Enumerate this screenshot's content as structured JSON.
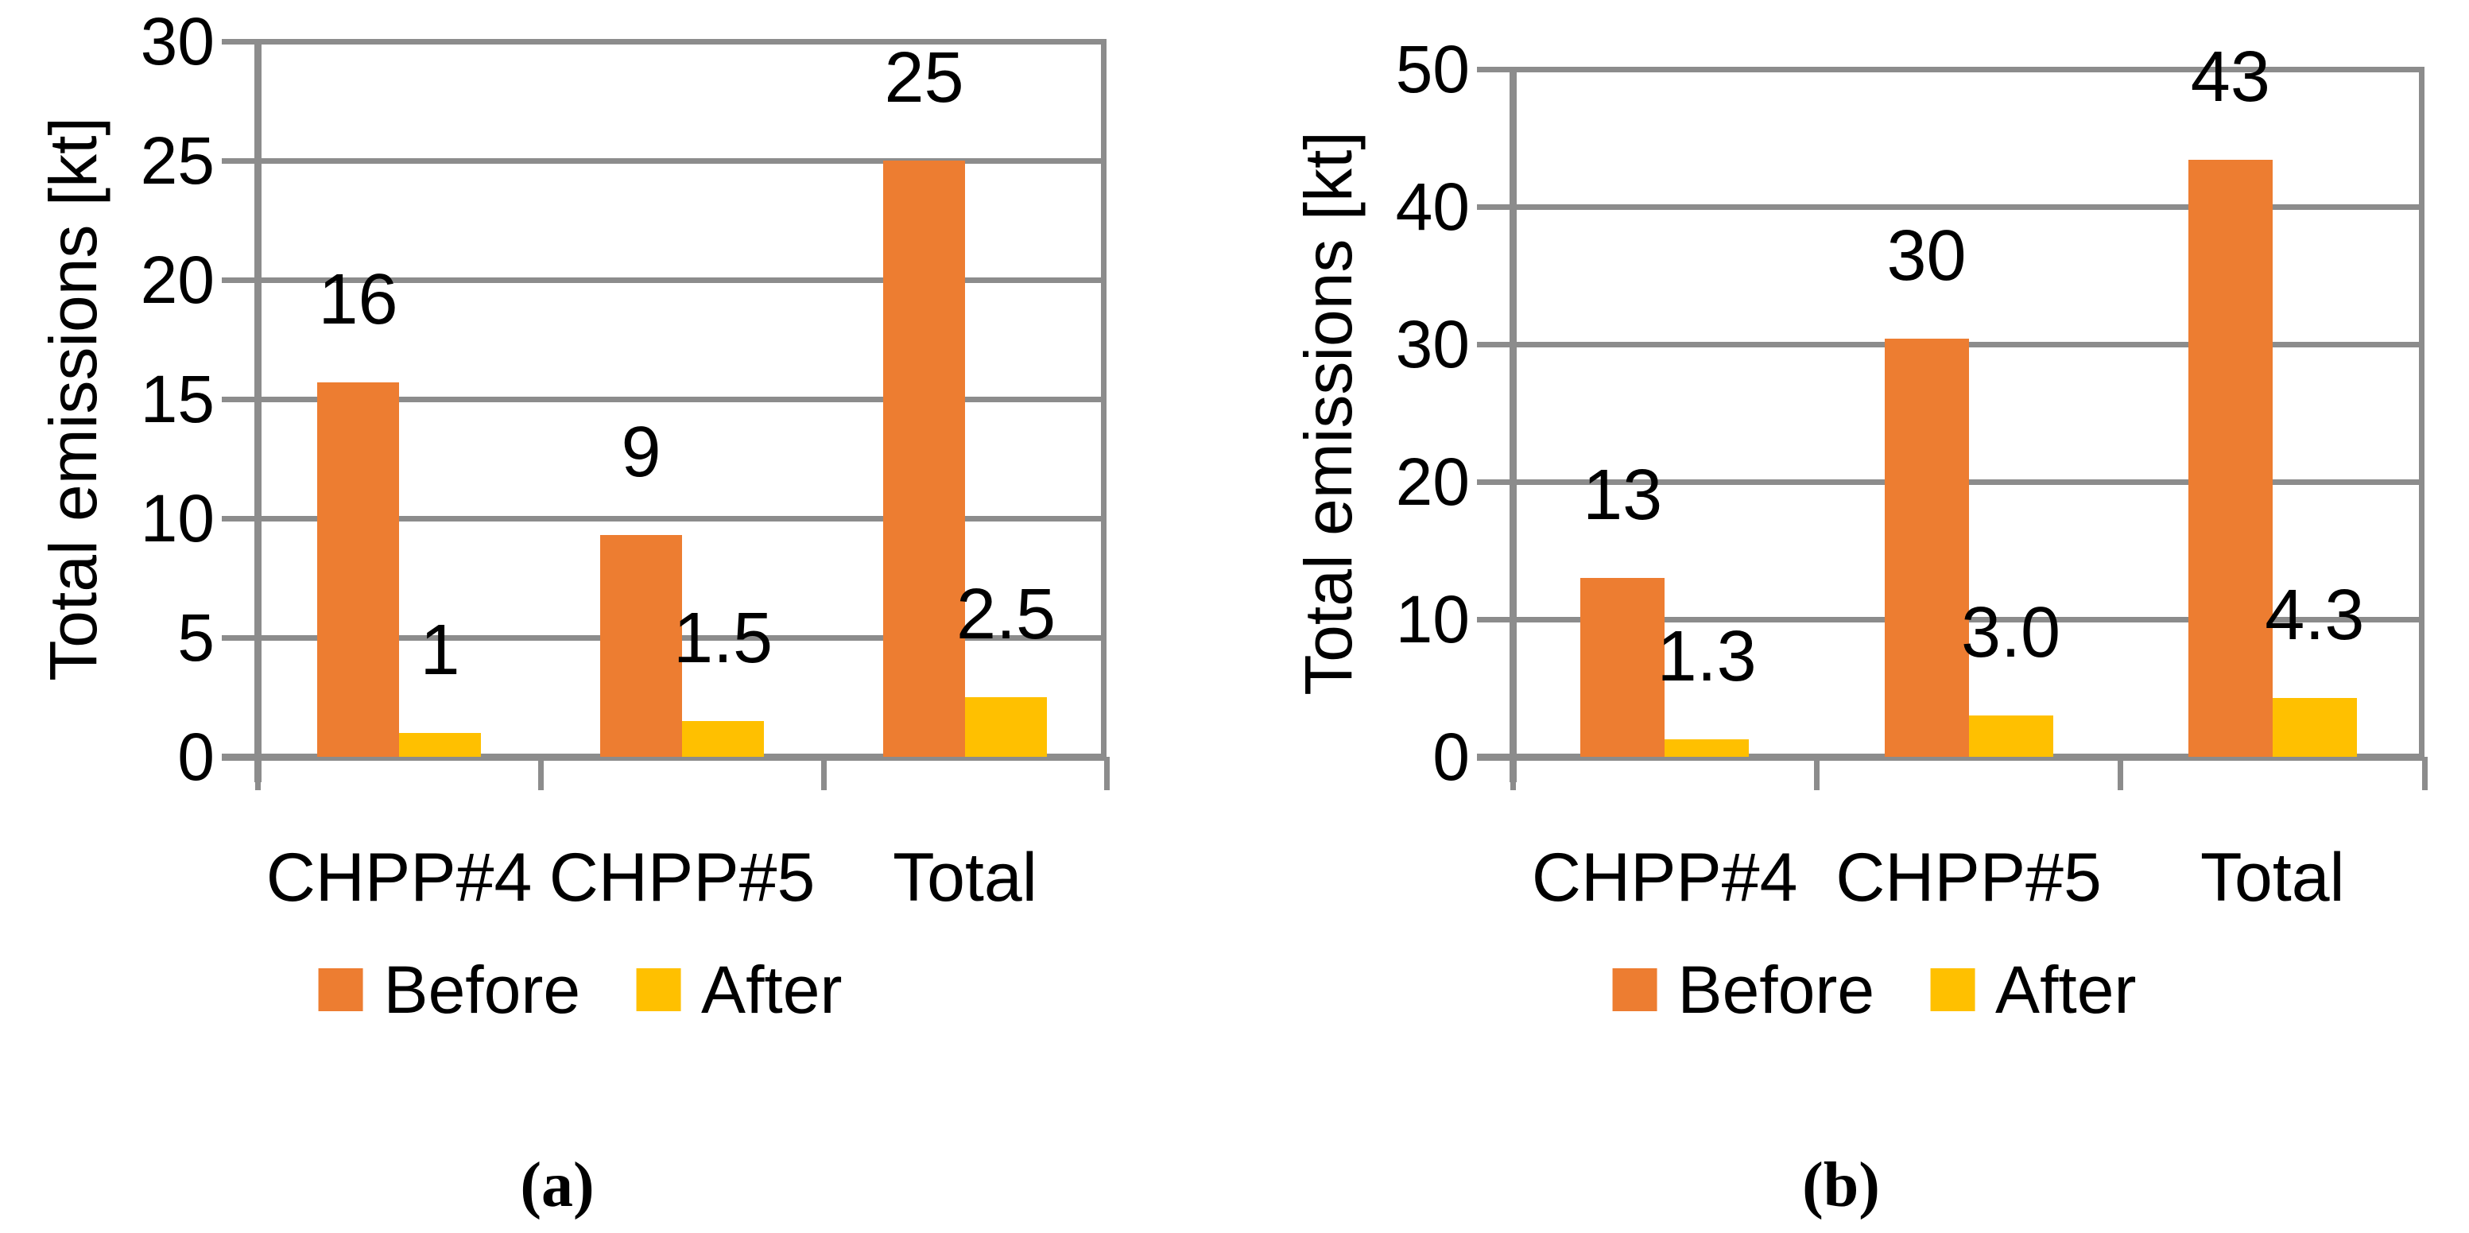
{
  "figure": {
    "background": "#FFFFFF",
    "text_color": "#000000"
  },
  "colors": {
    "before": "#ED7D31",
    "after": "#FFC000",
    "grid": "#8C8C8C",
    "axis": "#8C8C8C"
  },
  "chart_data": [
    {
      "type": "bar",
      "panel": "a",
      "caption": "(a)",
      "title": "",
      "xlabel": "",
      "ylabel": "Total emissions [kt]",
      "categories": [
        "CHPP#4",
        "CHPP#5",
        "Total"
      ],
      "series": [
        {
          "name": "Before",
          "color": "#ED7D31",
          "values": [
            15.7,
            9.3,
            25
          ],
          "labels": [
            "16",
            "9",
            "25"
          ]
        },
        {
          "name": "After",
          "color": "#FFC000",
          "values": [
            1,
            1.5,
            2.5
          ],
          "labels": [
            "1",
            "1.5",
            "2.5"
          ]
        }
      ],
      "ylim": [
        0,
        30
      ],
      "ytick_step": 5,
      "yticks": [
        "0",
        "5",
        "10",
        "15",
        "20",
        "25",
        "30"
      ],
      "grid": true,
      "legend_position": "bottom",
      "legend_labels": [
        "Before",
        "After"
      ]
    },
    {
      "type": "bar",
      "panel": "b",
      "caption": "(b)",
      "title": "",
      "xlabel": "",
      "ylabel": "Total emissions [kt]",
      "categories": [
        "CHPP#4",
        "CHPP#5",
        "Total"
      ],
      "series": [
        {
          "name": "Before",
          "color": "#ED7D31",
          "values": [
            13,
            30.4,
            43.4
          ],
          "labels": [
            "13",
            "30",
            "43"
          ]
        },
        {
          "name": "After",
          "color": "#FFC000",
          "values": [
            1.3,
            3.0,
            4.3
          ],
          "labels": [
            "1.3",
            "3.0",
            "4.3"
          ]
        }
      ],
      "ylim": [
        0,
        50
      ],
      "ytick_step": 10,
      "yticks": [
        "0",
        "10",
        "20",
        "30",
        "40",
        "50"
      ],
      "grid": true,
      "legend_position": "bottom",
      "legend_labels": [
        "Before",
        "After"
      ]
    }
  ]
}
